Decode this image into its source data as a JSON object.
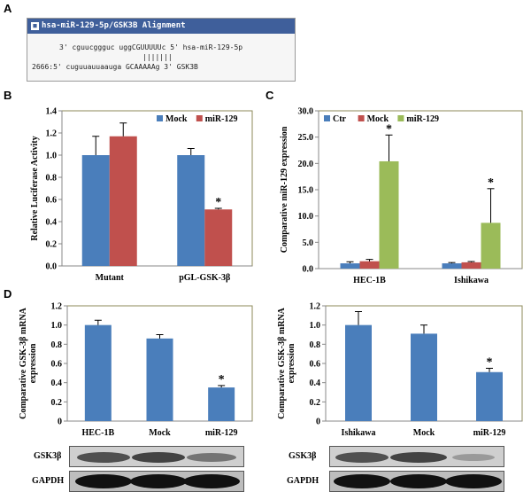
{
  "panels": {
    "a": "A",
    "b": "B",
    "c": "C",
    "d": "D"
  },
  "alignment": {
    "title": "hsa-miR-129-5p/GSK3B Alignment",
    "line1": "3' cguucggguc uggCGUUUUUc 5' hsa-miR-129-5p",
    "pairing": "|||||||",
    "line2": "2666:5' cuguuauuaauga GCAAAAAg 3' GSK3B"
  },
  "chart_data": [
    {
      "id": "B",
      "type": "bar",
      "ylabel": "Relative Luciferase Activity",
      "ylim": [
        0,
        1.4
      ],
      "yticks": [
        "0.0",
        "0.2",
        "0.4",
        "0.6",
        "0.8",
        "1.0",
        "1.2",
        "1.4"
      ],
      "categories": [
        "Mutant",
        "pGL-GSK-3β"
      ],
      "legend": [
        "Mock",
        "miR-129"
      ],
      "series": [
        {
          "name": "Mock",
          "color": "#4a7ebb",
          "values": [
            1.0,
            1.0
          ],
          "errors": [
            0.17,
            0.06
          ]
        },
        {
          "name": "miR-129",
          "color": "#c0504d",
          "values": [
            1.17,
            0.51
          ],
          "errors": [
            0.12,
            0.01
          ]
        }
      ],
      "significance": [
        {
          "series": 1,
          "category": 1,
          "mark": "*"
        }
      ]
    },
    {
      "id": "C",
      "type": "bar",
      "ylabel": "Comparative miR-129 expression",
      "ylim": [
        0,
        30
      ],
      "yticks": [
        "0.0",
        "5.0",
        "10.0",
        "15.0",
        "20.0",
        "25.0",
        "30.0"
      ],
      "categories": [
        "HEC-1B",
        "Ishikawa"
      ],
      "legend": [
        "Ctr",
        "Mock",
        "miR-129"
      ],
      "series": [
        {
          "name": "Ctr",
          "color": "#4a7ebb",
          "values": [
            1.0,
            1.0
          ],
          "errors": [
            0.3,
            0.15
          ]
        },
        {
          "name": "Mock",
          "color": "#c0504d",
          "values": [
            1.4,
            1.2
          ],
          "errors": [
            0.35,
            0.15
          ]
        },
        {
          "name": "miR-129",
          "color": "#9bbb59",
          "values": [
            20.4,
            8.7
          ],
          "errors": [
            5.0,
            6.5
          ]
        }
      ],
      "significance": [
        {
          "series": 2,
          "category": 0,
          "mark": "*"
        },
        {
          "series": 2,
          "category": 1,
          "mark": "*"
        }
      ]
    },
    {
      "id": "D-left",
      "type": "bar",
      "ylabel": "Comparative GSK-3β mRNA expression",
      "ylim": [
        0,
        1.2
      ],
      "yticks": [
        "0",
        "0.2",
        "0.4",
        "0.6",
        "0.8",
        "1.0",
        "1.2"
      ],
      "categories": [
        "HEC-1B",
        "Mock",
        "miR-129"
      ],
      "series": [
        {
          "name": "GSK-3β",
          "color": "#4a7ebb",
          "values": [
            1.0,
            0.86,
            0.35
          ],
          "errors": [
            0.05,
            0.04,
            0.02
          ]
        }
      ],
      "significance": [
        {
          "series": 0,
          "category": 2,
          "mark": "*"
        }
      ]
    },
    {
      "id": "D-right",
      "type": "bar",
      "ylabel": "Comparative GSK-3β mRNA expression",
      "ylim": [
        0,
        1.2
      ],
      "yticks": [
        "0",
        "0.2",
        "0.4",
        "0.6",
        "0.8",
        "1.0",
        "1.2"
      ],
      "categories": [
        "Ishikawa",
        "Mock",
        "miR-129"
      ],
      "series": [
        {
          "name": "GSK-3β",
          "color": "#4a7ebb",
          "values": [
            1.0,
            0.91,
            0.51
          ],
          "errors": [
            0.14,
            0.09,
            0.04
          ]
        }
      ],
      "significance": [
        {
          "series": 0,
          "category": 2,
          "mark": "*"
        }
      ]
    }
  ],
  "blots": {
    "left": {
      "row1": "GSK3β",
      "row2": "GAPDH"
    },
    "right": {
      "row1": "GSK3β",
      "row2": "GAPDH"
    }
  }
}
